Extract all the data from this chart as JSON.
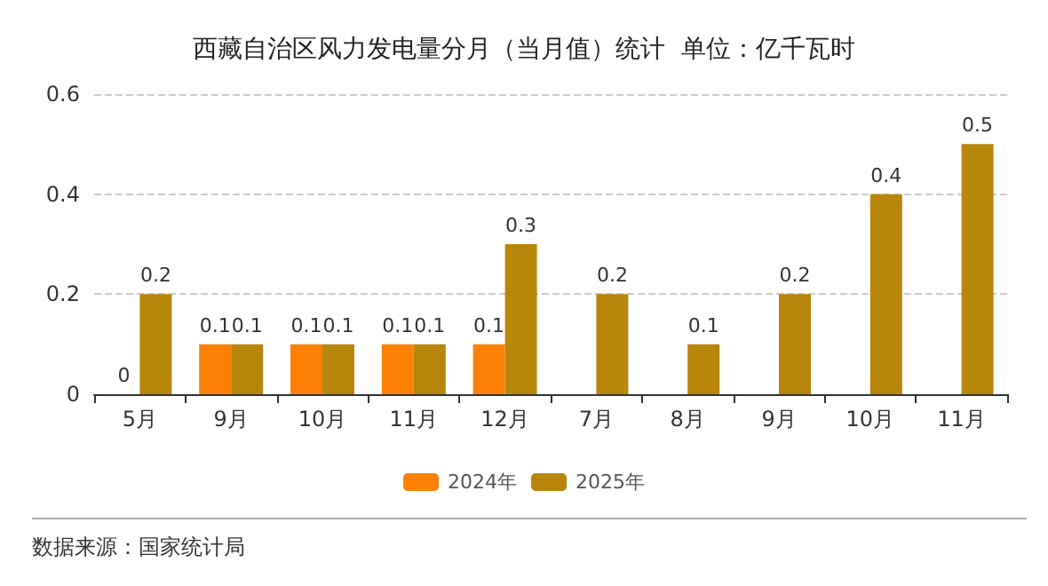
{
  "chart_data": {
    "type": "bar",
    "title": "西藏自治区风力发电量分月（当月值）统计  单位：亿千瓦时",
    "categories": [
      "5月",
      "9月",
      "10月",
      "11月",
      "12月",
      "7月",
      "8月",
      "9月",
      "10月",
      "11月"
    ],
    "series": [
      {
        "name": "2024年",
        "color": "#fb8005",
        "values": [
          0,
          0.1,
          0.1,
          0.1,
          0.1,
          null,
          null,
          null,
          null,
          null
        ]
      },
      {
        "name": "2025年",
        "color": "#b8860b",
        "values": [
          0.2,
          0.1,
          0.1,
          0.1,
          0.3,
          0.2,
          0.1,
          0.2,
          0.4,
          0.5
        ]
      }
    ],
    "ylim": [
      0,
      0.6
    ],
    "yticks": [
      0,
      0.2,
      0.4,
      0.6
    ],
    "grid": "y",
    "legend": "bottom",
    "data_labels": true,
    "annotations": [
      "数据来源：国家统计局"
    ]
  }
}
